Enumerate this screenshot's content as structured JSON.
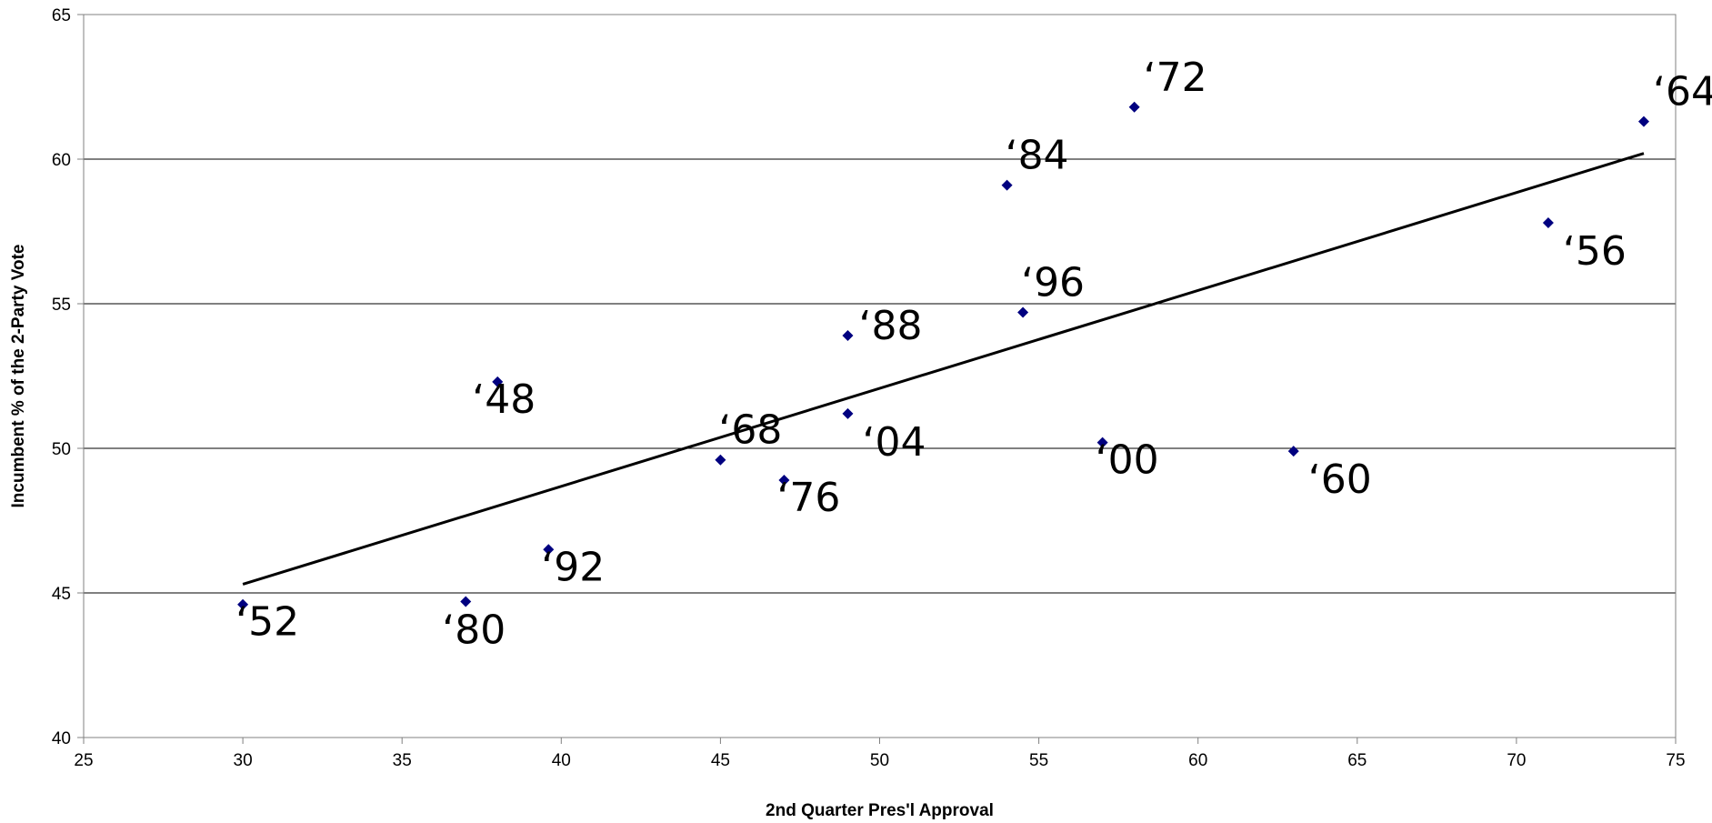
{
  "chart_data": {
    "type": "scatter",
    "title": "",
    "xlabel": "2nd Quarter Pres'l Approval",
    "ylabel": "Incumbent % of the 2-Party Vote",
    "xlim": [
      25,
      75
    ],
    "ylim": [
      40,
      65
    ],
    "x_ticks": [
      25,
      30,
      35,
      40,
      45,
      50,
      55,
      60,
      65,
      70,
      75
    ],
    "y_ticks": [
      40,
      45,
      50,
      55,
      60,
      65
    ],
    "grid": "horizontal",
    "legend": "none",
    "marker_color": "#000080",
    "trendline": {
      "x": [
        30,
        74
      ],
      "y": [
        45.3,
        60.2
      ]
    },
    "points": [
      {
        "label": "‘52",
        "x": 30.0,
        "y": 44.6,
        "label_pos": "below"
      },
      {
        "label": "‘80",
        "x": 37.0,
        "y": 44.7,
        "label_pos": "below-left"
      },
      {
        "label": "‘48",
        "x": 38.0,
        "y": 52.3,
        "label_pos": "overlap"
      },
      {
        "label": "‘92",
        "x": 39.6,
        "y": 46.5,
        "label_pos": "below"
      },
      {
        "label": "‘68",
        "x": 45.0,
        "y": 49.6,
        "label_pos": "above"
      },
      {
        "label": "‘76",
        "x": 47.0,
        "y": 48.9,
        "label_pos": "below"
      },
      {
        "label": "‘88",
        "x": 49.0,
        "y": 53.9,
        "label_pos": "right"
      },
      {
        "label": "‘04",
        "x": 49.0,
        "y": 51.2,
        "label_pos": "below-right"
      },
      {
        "label": "‘84",
        "x": 54.0,
        "y": 59.1,
        "label_pos": "above"
      },
      {
        "label": "‘96",
        "x": 54.5,
        "y": 54.7,
        "label_pos": "above"
      },
      {
        "label": "‘00",
        "x": 57.0,
        "y": 50.2,
        "label_pos": "below"
      },
      {
        "label": "‘72",
        "x": 58.0,
        "y": 61.8,
        "label_pos": "above-right"
      },
      {
        "label": "‘60",
        "x": 63.0,
        "y": 49.9,
        "label_pos": "below-right"
      },
      {
        "label": "‘56",
        "x": 71.0,
        "y": 57.8,
        "label_pos": "below-right"
      },
      {
        "label": "‘64",
        "x": 74.0,
        "y": 61.3,
        "label_pos": "above-right"
      }
    ]
  }
}
